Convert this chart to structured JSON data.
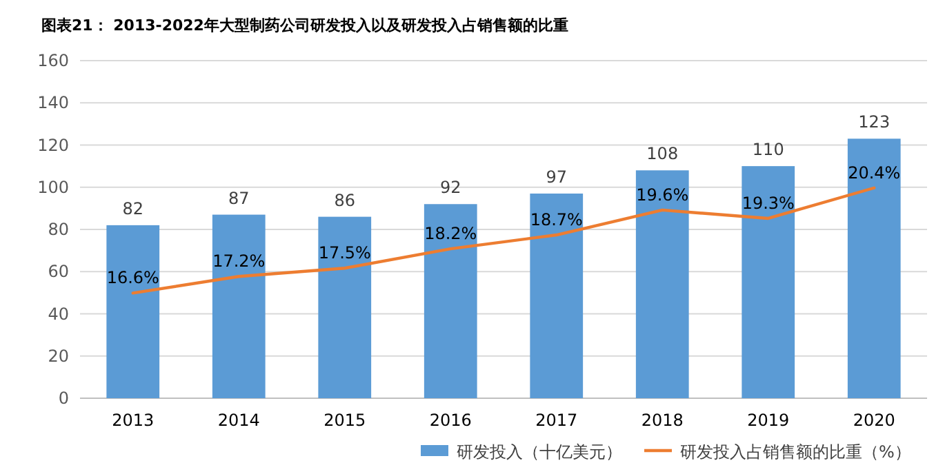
{
  "chart_data": {
    "type": "bar",
    "title": "图表21： 2013-2022年大型制药公司研发投入以及研发投入占销售额的比重",
    "categories": [
      "2013",
      "2014",
      "2015",
      "2016",
      "2017",
      "2018",
      "2019",
      "2020"
    ],
    "series": [
      {
        "name": "研发投入（十亿美元）",
        "color": "#5b9bd5",
        "values": [
          82,
          87,
          86,
          92,
          97,
          108,
          110,
          123
        ]
      },
      {
        "name": "研发投入占销售额的比重（%）",
        "type": "line",
        "axis": "y2",
        "color": "#ed7d31",
        "values": [
          16.6,
          17.2,
          17.5,
          18.2,
          18.7,
          19.6,
          19.3,
          20.4
        ],
        "value_labels": [
          "16.6%",
          "17.2%",
          "17.5%",
          "18.2%",
          "18.7%",
          "19.6%",
          "19.3%",
          "20.4%"
        ]
      }
    ],
    "ylim": [
      0,
      160
    ],
    "yticks": [
      0,
      20,
      40,
      60,
      80,
      100,
      120,
      140,
      160
    ],
    "y2lim": [
      12.8,
      25
    ],
    "tick_labels": "xy",
    "data_labels": true,
    "grid": "y",
    "legend": "bottom",
    "marker": "none"
  }
}
